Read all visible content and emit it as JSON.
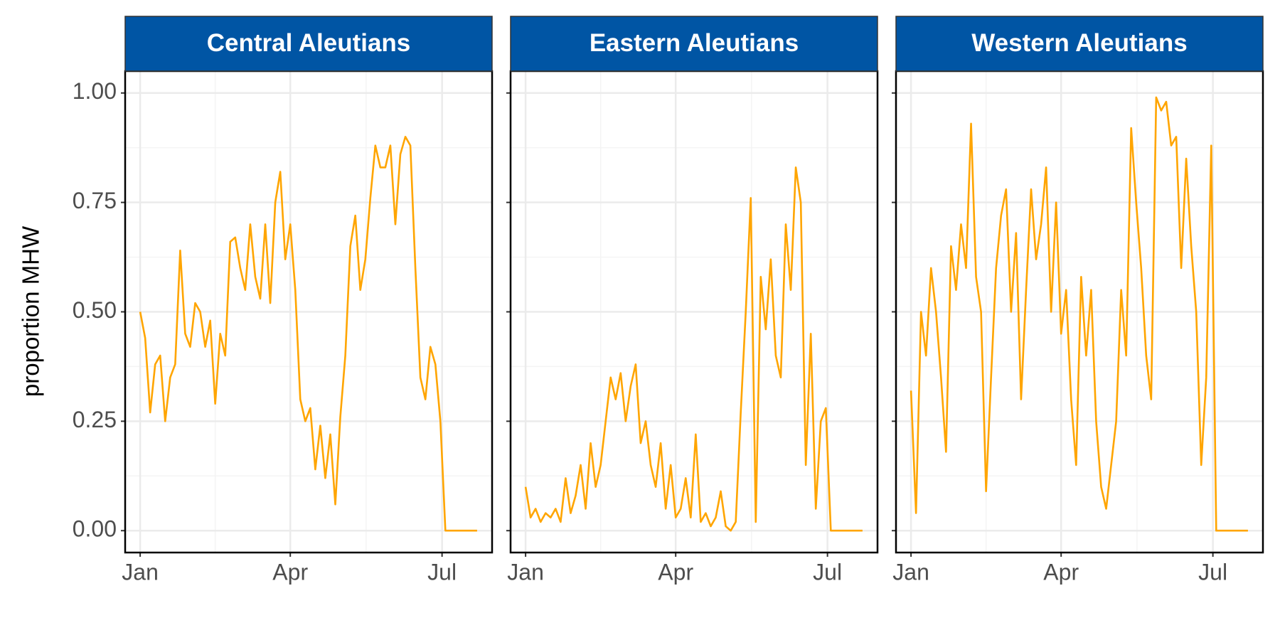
{
  "chart_data": {
    "type": "line",
    "ylabel": "proportion MHW",
    "color": "#FFA500",
    "grid": true,
    "x": [
      1,
      4,
      7,
      10,
      13,
      16,
      19,
      22,
      25,
      28,
      31,
      34,
      37,
      40,
      43,
      46,
      49,
      52,
      55,
      58,
      61,
      64,
      67,
      70,
      73,
      76,
      79,
      82,
      85,
      88,
      91,
      94,
      97,
      100,
      103,
      106,
      109,
      112,
      115,
      118,
      121,
      124,
      127,
      130,
      133,
      136,
      139,
      142,
      145,
      148,
      151,
      154,
      157,
      160,
      163,
      166,
      169,
      172,
      175,
      178,
      181,
      184,
      203
    ],
    "xlim": [
      -8,
      212
    ],
    "xticks": [
      {
        "value": 1,
        "label": "Jan"
      },
      {
        "value": 91,
        "label": "Apr"
      },
      {
        "value": 182,
        "label": "Jul"
      }
    ],
    "ylim": [
      -0.05,
      1.05
    ],
    "yticks": [
      {
        "value": 0,
        "label": "0.00"
      },
      {
        "value": 0.25,
        "label": "0.25"
      },
      {
        "value": 0.5,
        "label": "0.50"
      },
      {
        "value": 0.75,
        "label": "0.75"
      },
      {
        "value": 1,
        "label": "1.00"
      }
    ],
    "panels": [
      {
        "title": "Central Aleutians",
        "values": [
          0.5,
          0.44,
          0.27,
          0.38,
          0.4,
          0.25,
          0.35,
          0.38,
          0.64,
          0.45,
          0.42,
          0.52,
          0.5,
          0.42,
          0.48,
          0.29,
          0.45,
          0.4,
          0.66,
          0.67,
          0.6,
          0.55,
          0.7,
          0.58,
          0.53,
          0.7,
          0.52,
          0.75,
          0.82,
          0.62,
          0.7,
          0.55,
          0.3,
          0.25,
          0.28,
          0.14,
          0.24,
          0.12,
          0.22,
          0.06,
          0.26,
          0.4,
          0.65,
          0.72,
          0.55,
          0.62,
          0.76,
          0.88,
          0.83,
          0.83,
          0.88,
          0.7,
          0.86,
          0.9,
          0.88,
          0.6,
          0.35,
          0.3,
          0.42,
          0.38,
          0.25,
          0,
          0
        ]
      },
      {
        "title": "Eastern Aleutians",
        "values": [
          0.1,
          0.03,
          0.05,
          0.02,
          0.04,
          0.03,
          0.05,
          0.02,
          0.12,
          0.04,
          0.08,
          0.15,
          0.05,
          0.2,
          0.1,
          0.15,
          0.25,
          0.35,
          0.3,
          0.36,
          0.25,
          0.33,
          0.38,
          0.2,
          0.25,
          0.15,
          0.1,
          0.2,
          0.05,
          0.15,
          0.03,
          0.05,
          0.12,
          0.03,
          0.22,
          0.02,
          0.04,
          0.01,
          0.03,
          0.09,
          0.01,
          0.0,
          0.02,
          0.27,
          0.5,
          0.76,
          0.02,
          0.58,
          0.46,
          0.62,
          0.4,
          0.35,
          0.7,
          0.55,
          0.83,
          0.75,
          0.15,
          0.45,
          0.05,
          0.25,
          0.28,
          0,
          0
        ]
      },
      {
        "title": "Western Aleutians",
        "values": [
          0.32,
          0.04,
          0.5,
          0.4,
          0.6,
          0.5,
          0.35,
          0.18,
          0.65,
          0.55,
          0.7,
          0.6,
          0.93,
          0.58,
          0.5,
          0.09,
          0.35,
          0.6,
          0.72,
          0.78,
          0.5,
          0.68,
          0.3,
          0.55,
          0.78,
          0.62,
          0.7,
          0.83,
          0.5,
          0.75,
          0.45,
          0.55,
          0.3,
          0.15,
          0.58,
          0.4,
          0.55,
          0.25,
          0.1,
          0.05,
          0.15,
          0.25,
          0.55,
          0.4,
          0.92,
          0.75,
          0.6,
          0.4,
          0.3,
          0.99,
          0.96,
          0.98,
          0.88,
          0.9,
          0.6,
          0.85,
          0.65,
          0.5,
          0.15,
          0.35,
          0.88,
          0,
          0
        ]
      }
    ]
  }
}
